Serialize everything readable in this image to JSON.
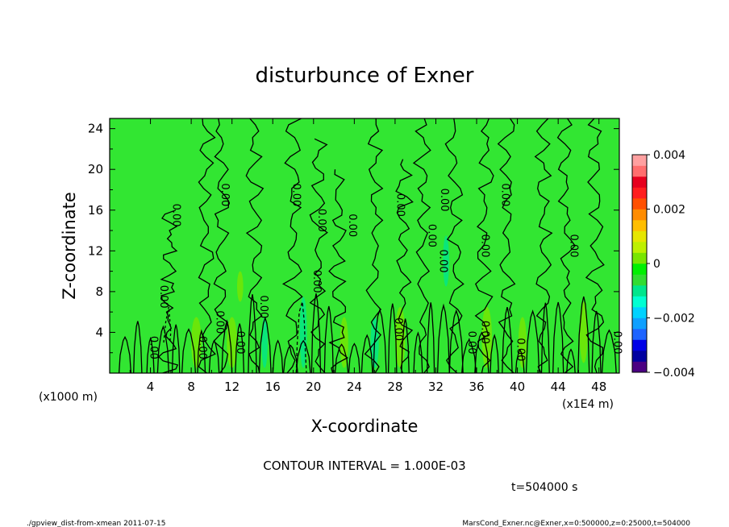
{
  "chart_data": {
    "type": "heatmap",
    "title": "disturbunce of Exner",
    "xlabel": "X-coordinate",
    "ylabel": "Z-coordinate",
    "x_unit_note": "(x1E4 m)",
    "z_unit_note": "(x1000 m)",
    "xlim": [
      0,
      50
    ],
    "ylim": [
      0,
      25
    ],
    "x_ticks": [
      "4",
      "8",
      "12",
      "16",
      "20",
      "24",
      "28",
      "32",
      "36",
      "40",
      "44",
      "48"
    ],
    "y_ticks": [
      "4",
      "8",
      "12",
      "16",
      "20",
      "24"
    ],
    "contour_interval_text": "CONTOUR INTERVAL = 1.000E-03",
    "time_text": "t=504000 s",
    "contour_label": "0.00",
    "contour_labels": [
      {
        "x": 11,
        "z": 17.5
      },
      {
        "x": 18,
        "z": 17.5
      },
      {
        "x": 28.2,
        "z": 16.5
      },
      {
        "x": 32.5,
        "z": 17
      },
      {
        "x": 38.5,
        "z": 17.5
      },
      {
        "x": 6.2,
        "z": 15.5
      },
      {
        "x": 20.5,
        "z": 15
      },
      {
        "x": 23.5,
        "z": 14.5
      },
      {
        "x": 31.3,
        "z": 13.5
      },
      {
        "x": 32.4,
        "z": 11
      },
      {
        "x": 36.5,
        "z": 12.5
      },
      {
        "x": 45.2,
        "z": 12.5
      },
      {
        "x": 5,
        "z": 7.5
      },
      {
        "x": 20,
        "z": 9
      },
      {
        "x": 14.8,
        "z": 6.5
      },
      {
        "x": 10.5,
        "z": 5
      },
      {
        "x": 28,
        "z": 4.3
      },
      {
        "x": 4,
        "z": 2.5
      },
      {
        "x": 8.8,
        "z": 2.5
      },
      {
        "x": 12.5,
        "z": 3
      },
      {
        "x": 35.2,
        "z": 3
      },
      {
        "x": 36.5,
        "z": 4
      },
      {
        "x": 40,
        "z": 2.3
      },
      {
        "x": 49.5,
        "z": 3
      }
    ],
    "colorbar": {
      "min": -0.004,
      "max": 0.004,
      "tick_labels": [
        "0.004",
        "0.002",
        "0",
        "−0.002",
        "−0.004"
      ],
      "tick_values": [
        0.004,
        0.002,
        0,
        -0.002,
        -0.004
      ],
      "colors": [
        "#4b0082",
        "#0000a0",
        "#0000e6",
        "#1e64ff",
        "#0fa0ff",
        "#00d2ff",
        "#00ffd2",
        "#00e68c",
        "#32dc32",
        "#00f000",
        "#78e600",
        "#bef000",
        "#e6e600",
        "#ffbe00",
        "#ff8c00",
        "#ff5000",
        "#ff1e1e",
        "#e6001e",
        "#ff6e6e",
        "#ffa0a0"
      ]
    },
    "background_color": "#32e632",
    "contour_color": "#000000"
  },
  "footer_left": "./gpview_dist-from-xmean  2011-07-15",
  "footer_right": "MarsCond_Exner.nc@Exner,x=0:500000,z=0:25000,t=504000"
}
